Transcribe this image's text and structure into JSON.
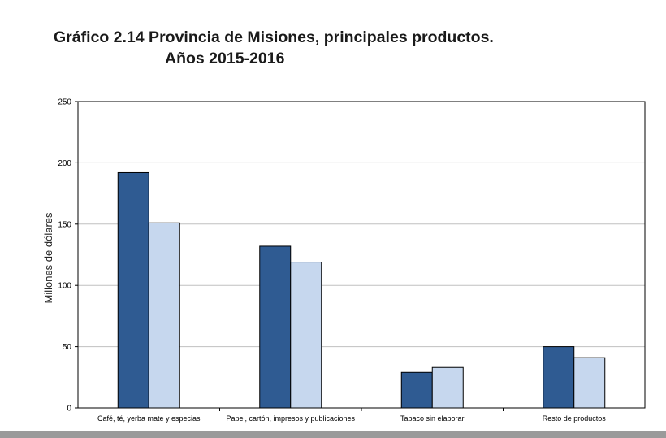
{
  "title_line1": "Gráfico 2.14 Provincia de Misiones, principales productos.",
  "title_line2": "Años 2015-2016",
  "colors": {
    "series_2015": "#2f5b92",
    "series_2016": "#c6d7ee",
    "grid": "#c0c0c0",
    "axis": "#000000"
  },
  "chart_data": {
    "type": "bar",
    "title": "Gráfico 2.14 Provincia de Misiones, principales productos. Años 2015-2016",
    "xlabel": "",
    "ylabel": "Millones de dólares",
    "ylim": [
      0,
      250
    ],
    "yticks": [
      0,
      50,
      100,
      150,
      200,
      250
    ],
    "grid": true,
    "legend": "none",
    "categories": [
      "Café, té, yerba mate y especias",
      "Papel, cartón, impresos y publicaciones",
      "Tabaco sin elaborar",
      "Resto de productos"
    ],
    "series": [
      {
        "color": "#2f5b92",
        "values": [
          192,
          132,
          29,
          50
        ]
      },
      {
        "color": "#c6d7ee",
        "values": [
          151,
          119,
          33,
          41
        ]
      }
    ]
  }
}
